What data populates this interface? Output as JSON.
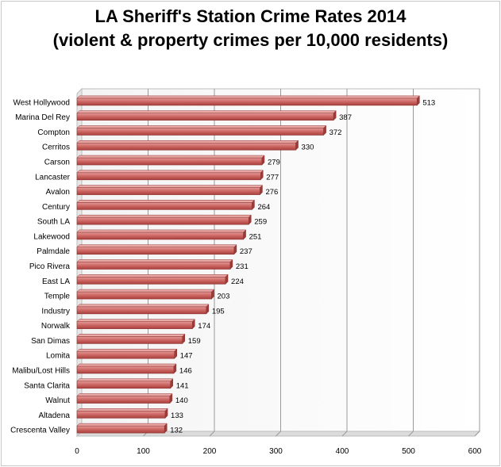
{
  "chart_data": {
    "type": "bar",
    "orientation": "horizontal",
    "title_line1": "LA Sheriff's Station Crime Rates 2014",
    "title_line2": "(violent & property crimes per 10,000 residents)",
    "xlabel": "",
    "ylabel": "",
    "xlim": [
      0,
      600
    ],
    "x_ticks": [
      0,
      100,
      200,
      300,
      400,
      500,
      600
    ],
    "grid": "vertical",
    "legend": "none",
    "bar_color": "#c0504d",
    "categories": [
      "West Hollywood",
      "Marina Del Rey",
      "Compton",
      "Cerritos",
      "Carson",
      "Lancaster",
      "Avalon",
      "Century",
      "South LA",
      "Lakewood",
      "Palmdale",
      "Pico Rivera",
      "East LA",
      "Temple",
      "Industry",
      "Norwalk",
      "San Dimas",
      "Lomita",
      "Malibu/Lost Hills",
      "Santa Clarita",
      "Walnut",
      "Altadena",
      "Crescenta Valley"
    ],
    "values": [
      513,
      387,
      372,
      330,
      279,
      277,
      276,
      264,
      259,
      251,
      237,
      231,
      224,
      203,
      195,
      174,
      159,
      147,
      146,
      141,
      140,
      133,
      132
    ]
  }
}
